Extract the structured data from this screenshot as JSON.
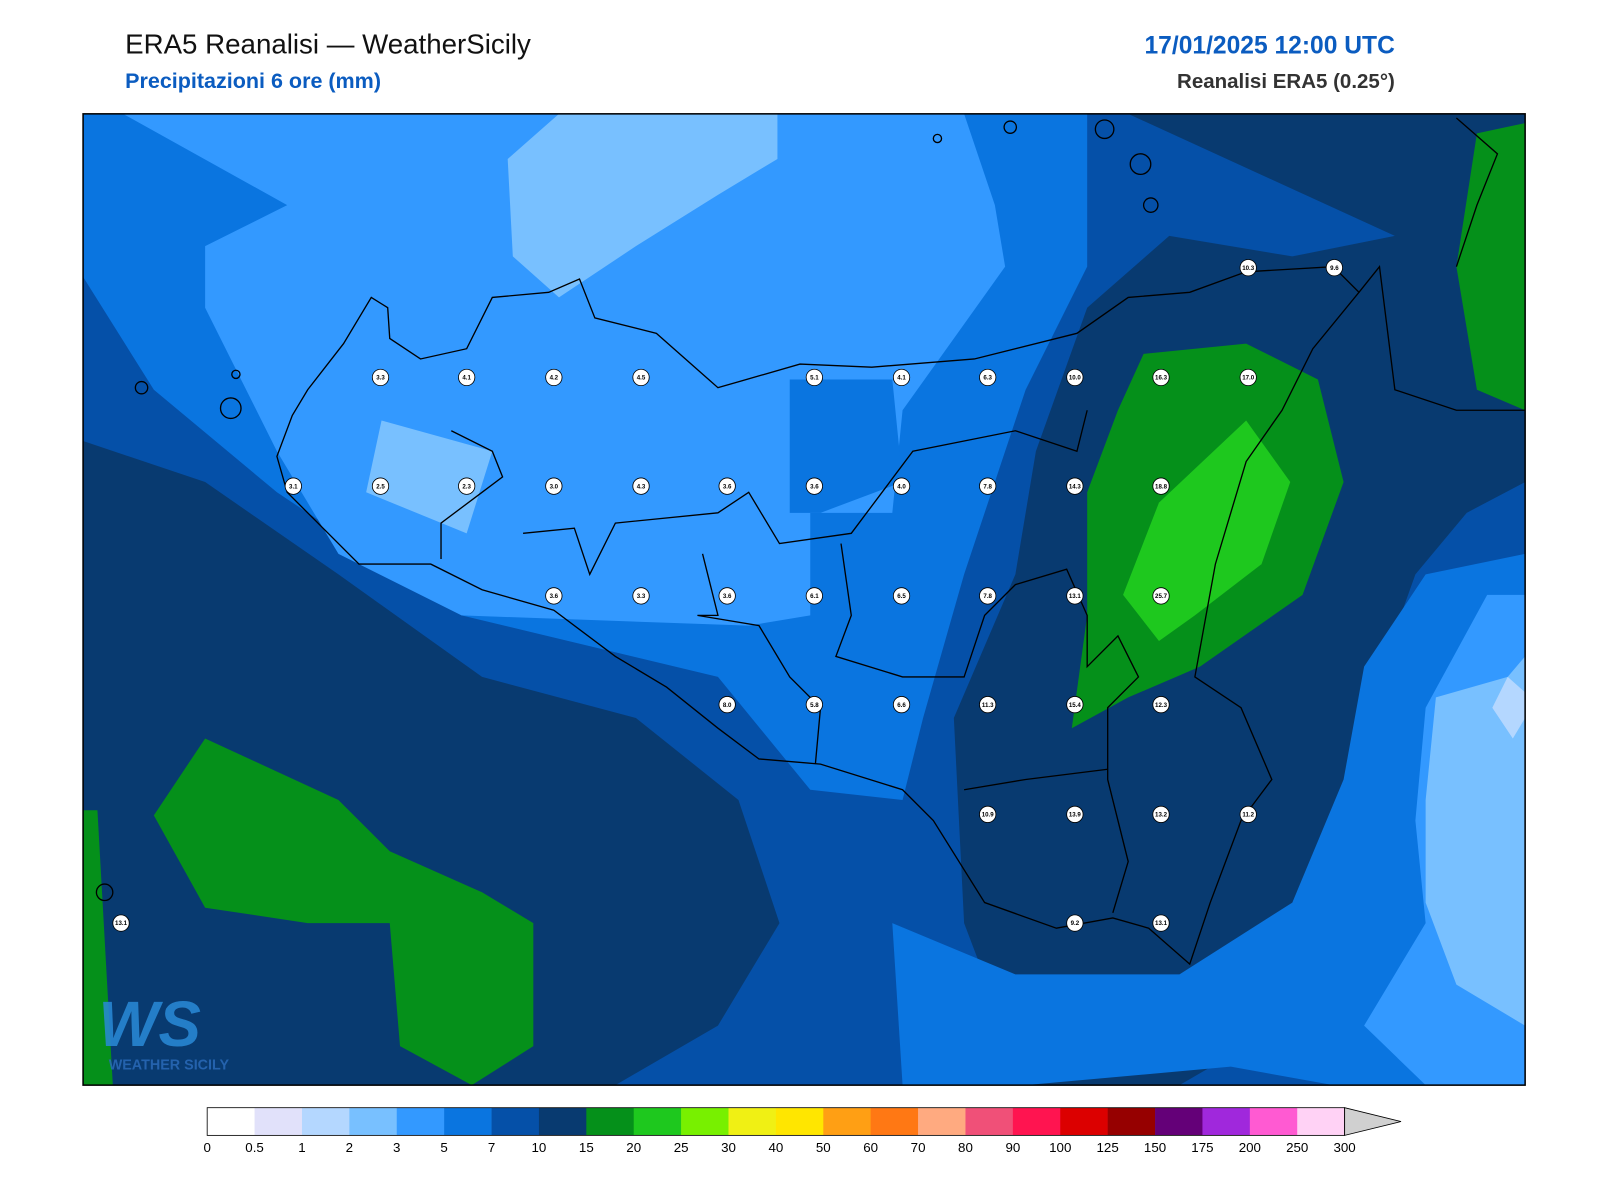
{
  "header": {
    "title": "ERA5 Reanalisi — WeatherSicily",
    "subtitle": "Precipitazioni 6 ore (mm)",
    "datetime": "17/01/2025 12:00 UTC",
    "model": "Reanalisi ERA5 (0.25°)"
  },
  "stations": [
    "10.3",
    "9.6",
    "3.3",
    "4.1",
    "4.2",
    "4.5",
    "5.1",
    "4.1",
    "6.3",
    "10.0",
    "16.3",
    "17.0",
    "3.1",
    "2.5",
    "2.3",
    "3.0",
    "4.3",
    "3.6",
    "3.6",
    "4.0",
    "7.8",
    "14.3",
    "18.8",
    "3.6",
    "3.3",
    "3.6",
    "6.1",
    "6.5",
    "7.8",
    "13.1",
    "25.7",
    "8.0",
    "5.8",
    "6.6",
    "11.3",
    "15.4",
    "12.3",
    "10.9",
    "13.9",
    "13.2",
    "11.2",
    "13.1",
    "9.2",
    "13.1"
  ],
  "colorbar": {
    "labels": [
      "0",
      "0.5",
      "1",
      "2",
      "3",
      "5",
      "7",
      "10",
      "15",
      "20",
      "25",
      "30",
      "40",
      "50",
      "60",
      "70",
      "80",
      "90",
      "100",
      "125",
      "150",
      "175",
      "200",
      "250",
      "300"
    ],
    "colors": [
      "#ffffff",
      "#e1e1fa",
      "#b4d7ff",
      "#78c0ff",
      "#3399ff",
      "#0a75e0",
      "#0550a8",
      "#083a70",
      "#05901a",
      "#1ec81e",
      "#78f000",
      "#f0f014",
      "#ffe600",
      "#ff9f14",
      "#ff7814",
      "#ffaa80",
      "#f05078",
      "#ff1450",
      "#dc0000",
      "#960000",
      "#640078",
      "#a028dc",
      "#ff5ad2",
      "#ffd2f5"
    ]
  },
  "logo": {
    "mark": "WS",
    "text": "WEATHER SICILY"
  }
}
